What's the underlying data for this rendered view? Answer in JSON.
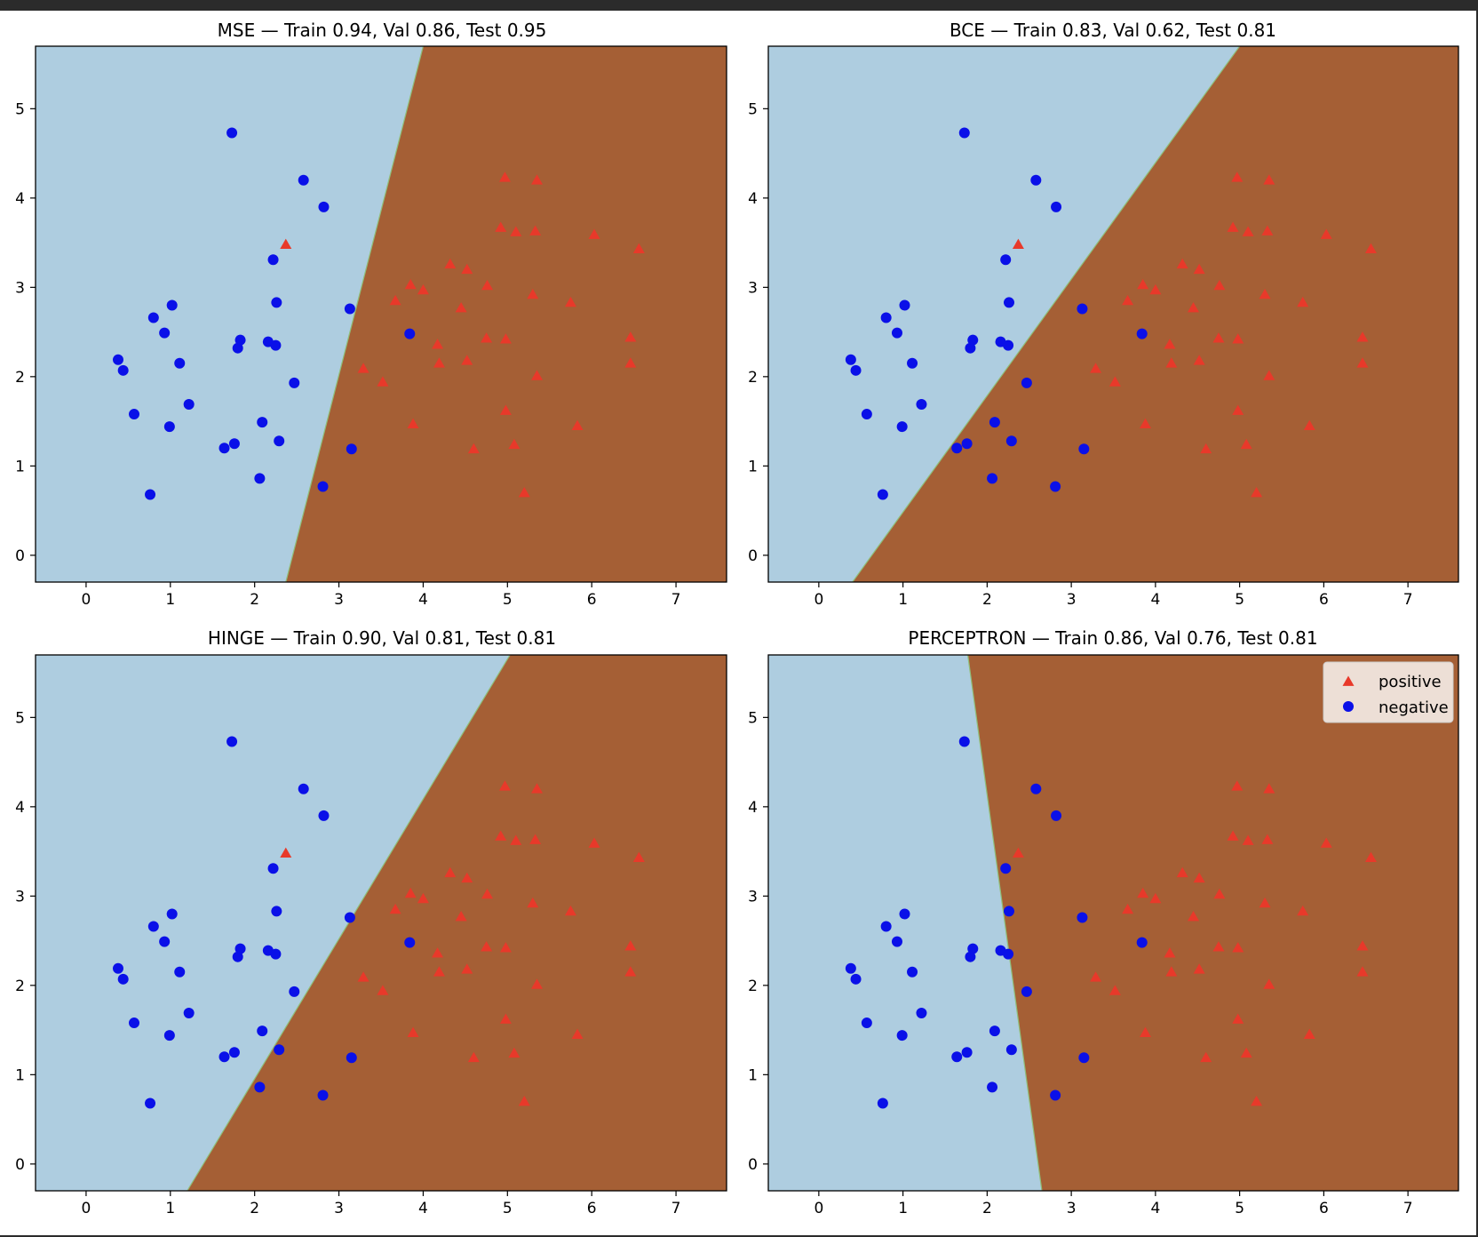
{
  "colors": {
    "region_negative": "#aecde0",
    "region_positive": "#a55f35",
    "positive_marker": "#e8392a",
    "negative_marker": "#0a10e8",
    "figure_bg": "#ffffff",
    "frame_bg": "#2b2b2b"
  },
  "legend": {
    "positive": "positive",
    "negative": "negative",
    "placement": "upper right of PERCEPTRON panel"
  },
  "points": {
    "positive": [
      [
        2.37,
        3.48
      ],
      [
        3.29,
        2.09
      ],
      [
        3.52,
        1.94
      ],
      [
        3.67,
        2.85
      ],
      [
        3.85,
        3.03
      ],
      [
        3.88,
        1.47
      ],
      [
        4.0,
        2.97
      ],
      [
        4.17,
        2.36
      ],
      [
        4.19,
        2.15
      ],
      [
        4.32,
        3.26
      ],
      [
        4.45,
        2.77
      ],
      [
        4.52,
        2.18
      ],
      [
        4.52,
        3.2
      ],
      [
        4.6,
        1.19
      ],
      [
        4.75,
        2.43
      ],
      [
        4.76,
        3.02
      ],
      [
        4.92,
        3.67
      ],
      [
        4.97,
        4.23
      ],
      [
        4.98,
        1.62
      ],
      [
        4.98,
        2.42
      ],
      [
        5.08,
        1.24
      ],
      [
        5.1,
        3.62
      ],
      [
        5.2,
        0.7
      ],
      [
        5.3,
        2.92
      ],
      [
        5.33,
        3.63
      ],
      [
        5.35,
        4.2
      ],
      [
        5.35,
        2.01
      ],
      [
        5.75,
        2.83
      ],
      [
        5.83,
        1.45
      ],
      [
        6.03,
        3.59
      ],
      [
        6.46,
        2.44
      ],
      [
        6.46,
        2.15
      ],
      [
        6.56,
        3.43
      ]
    ],
    "negative": [
      [
        0.38,
        2.19
      ],
      [
        0.44,
        2.07
      ],
      [
        0.57,
        1.58
      ],
      [
        0.76,
        0.68
      ],
      [
        0.8,
        2.66
      ],
      [
        0.93,
        2.49
      ],
      [
        0.99,
        1.44
      ],
      [
        1.02,
        2.8
      ],
      [
        1.11,
        2.15
      ],
      [
        1.22,
        1.69
      ],
      [
        1.64,
        1.2
      ],
      [
        1.73,
        4.73
      ],
      [
        1.76,
        1.25
      ],
      [
        1.8,
        2.32
      ],
      [
        1.83,
        2.41
      ],
      [
        2.06,
        0.86
      ],
      [
        2.09,
        1.49
      ],
      [
        2.16,
        2.39
      ],
      [
        2.22,
        3.31
      ],
      [
        2.25,
        2.35
      ],
      [
        2.26,
        2.83
      ],
      [
        2.29,
        1.28
      ],
      [
        2.47,
        1.93
      ],
      [
        2.58,
        4.2
      ],
      [
        2.81,
        0.77
      ],
      [
        2.82,
        3.9
      ],
      [
        3.13,
        2.76
      ],
      [
        3.15,
        1.19
      ],
      [
        3.84,
        2.48
      ]
    ]
  },
  "chart_data": [
    {
      "type": "scatter",
      "title": "MSE — Train 0.94, Val 0.86, Test 0.95",
      "xlim": [
        -0.6,
        7.6
      ],
      "ylim": [
        -0.3,
        5.7
      ],
      "xticks": [
        "0",
        "1",
        "2",
        "3",
        "4",
        "5",
        "6",
        "7"
      ],
      "yticks": [
        "0",
        "1",
        "2",
        "3",
        "4",
        "5"
      ],
      "boundary": [
        [
          2.37,
          -0.3
        ],
        [
          4.0,
          5.7
        ]
      ],
      "legend": false
    },
    {
      "type": "scatter",
      "title": "BCE — Train 0.83, Val 0.62, Test 0.81",
      "xlim": [
        -0.6,
        7.6
      ],
      "ylim": [
        -0.3,
        5.7
      ],
      "xticks": [
        "0",
        "1",
        "2",
        "3",
        "4",
        "5",
        "6",
        "7"
      ],
      "yticks": [
        "0",
        "1",
        "2",
        "3",
        "4",
        "5"
      ],
      "boundary": [
        [
          0.4,
          -0.3
        ],
        [
          5.0,
          5.7
        ]
      ],
      "legend": false
    },
    {
      "type": "scatter",
      "title": "HINGE — Train 0.90, Val 0.81, Test 0.81",
      "xlim": [
        -0.6,
        7.6
      ],
      "ylim": [
        -0.3,
        5.7
      ],
      "xticks": [
        "0",
        "1",
        "2",
        "3",
        "4",
        "5",
        "6",
        "7"
      ],
      "yticks": [
        "0",
        "1",
        "2",
        "3",
        "4",
        "5"
      ],
      "boundary": [
        [
          1.2,
          -0.3
        ],
        [
          5.03,
          5.7
        ]
      ],
      "legend": false
    },
    {
      "type": "scatter",
      "title": "PERCEPTRON — Train 0.86, Val 0.76, Test 0.81",
      "xlim": [
        -0.6,
        7.6
      ],
      "ylim": [
        -0.3,
        5.7
      ],
      "xticks": [
        "0",
        "1",
        "2",
        "3",
        "4",
        "5",
        "6",
        "7"
      ],
      "yticks": [
        "0",
        "1",
        "2",
        "3",
        "4",
        "5"
      ],
      "boundary": [
        [
          2.65,
          -0.3
        ],
        [
          1.77,
          5.7
        ]
      ],
      "legend": true
    }
  ]
}
